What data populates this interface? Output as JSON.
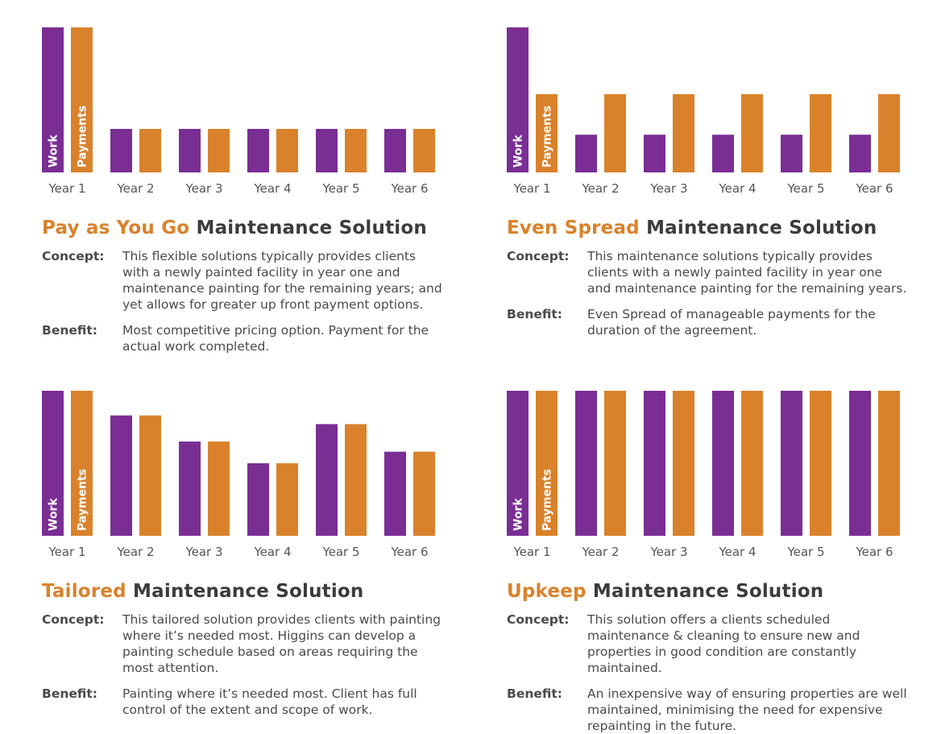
{
  "colors": {
    "work": "#7a2e94",
    "payments": "#d9822b",
    "accent": "#d9822b",
    "text": "#4a4a4a"
  },
  "chart_data": [
    {
      "type": "bar",
      "categories": [
        "Year 1",
        "Year 2",
        "Year 3",
        "Year 4",
        "Year 5",
        "Year 6"
      ],
      "series": [
        {
          "name": "Work",
          "values": [
            100,
            30,
            30,
            30,
            30,
            30
          ]
        },
        {
          "name": "Payments",
          "values": [
            100,
            30,
            30,
            30,
            30,
            30
          ]
        }
      ],
      "ylim": [
        0,
        100
      ],
      "title_highlight": "Pay as You Go",
      "title_rest": "Maintenance Solution"
    },
    {
      "type": "bar",
      "categories": [
        "Year 1",
        "Year 2",
        "Year 3",
        "Year 4",
        "Year 5",
        "Year 6"
      ],
      "series": [
        {
          "name": "Work",
          "values": [
            100,
            26,
            26,
            26,
            26,
            26
          ]
        },
        {
          "name": "Payments",
          "values": [
            54,
            54,
            54,
            54,
            54,
            54
          ]
        }
      ],
      "ylim": [
        0,
        100
      ],
      "title_highlight": "Even Spread",
      "title_rest": "Maintenance Solution"
    },
    {
      "type": "bar",
      "categories": [
        "Year 1",
        "Year 2",
        "Year 3",
        "Year 4",
        "Year 5",
        "Year 6"
      ],
      "series": [
        {
          "name": "Work",
          "values": [
            100,
            83,
            65,
            50,
            77,
            58
          ]
        },
        {
          "name": "Payments",
          "values": [
            100,
            83,
            65,
            50,
            77,
            58
          ]
        }
      ],
      "ylim": [
        0,
        100
      ],
      "title_highlight": "Tailored",
      "title_rest": "Maintenance Solution"
    },
    {
      "type": "bar",
      "categories": [
        "Year 1",
        "Year 2",
        "Year 3",
        "Year 4",
        "Year 5",
        "Year 6"
      ],
      "series": [
        {
          "name": "Work",
          "values": [
            100,
            100,
            100,
            100,
            100,
            100
          ]
        },
        {
          "name": "Payments",
          "values": [
            100,
            100,
            100,
            100,
            100,
            100
          ]
        }
      ],
      "ylim": [
        0,
        100
      ],
      "title_highlight": "Upkeep",
      "title_rest": "Maintenance Solution"
    }
  ],
  "panels": [
    {
      "concept_label": "Concept:",
      "concept": "This flexible solutions typically provides clients with a newly painted facility in year one and maintenance painting for the remaining years; and yet allows for greater up front payment options.",
      "benefit_label": "Benefit:",
      "benefit": "Most competitive pricing option. Payment for the actual work completed."
    },
    {
      "concept_label": "Concept:",
      "concept": "This maintenance solutions typically provides clients with a newly painted facility in year one and maintenance painting for the remaining years.",
      "benefit_label": "Benefit:",
      "benefit": "Even Spread of manageable payments for the duration of the agreement."
    },
    {
      "concept_label": "Concept:",
      "concept": "This tailored solution provides clients with painting where it’s needed most. Higgins can develop a painting schedule based on areas requiring the most attention.",
      "benefit_label": "Benefit:",
      "benefit": "Painting where it’s needed most. Client has full control of the extent and scope of work."
    },
    {
      "concept_label": "Concept:",
      "concept": "This solution offers a clients scheduled maintenance & cleaning to ensure new and properties in good condition are constantly maintained.",
      "benefit_label": "Benefit:",
      "benefit": "An inexpensive way of ensuring properties are well maintained, minimising the need for expensive repainting in the future."
    }
  ]
}
